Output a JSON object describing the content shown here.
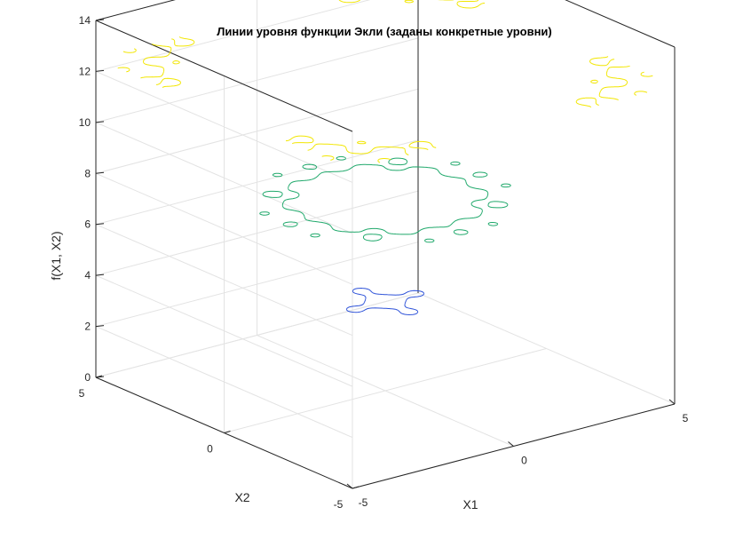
{
  "chart_data": {
    "type": "contour3",
    "title": "Линии уровня функции Экли (заданы конкретные уровни)",
    "xlabel": "X1",
    "ylabel": "X2",
    "zlabel": "f(X1, X2)",
    "xlim": [
      -5,
      5
    ],
    "ylim": [
      -5,
      5
    ],
    "zlim": [
      0,
      14
    ],
    "x_ticks": [
      -5,
      0,
      5
    ],
    "y_ticks": [
      -5,
      0,
      5
    ],
    "z_ticks": [
      0,
      2,
      4,
      6,
      8,
      10,
      12,
      14
    ],
    "grid": true,
    "function": "Ackley",
    "levels": [
      {
        "z": 3.5,
        "color": "#2b50d8"
      },
      {
        "z": 7.5,
        "color": "#1ea86a"
      },
      {
        "z": 12.5,
        "color": "#f2e600"
      }
    ]
  }
}
